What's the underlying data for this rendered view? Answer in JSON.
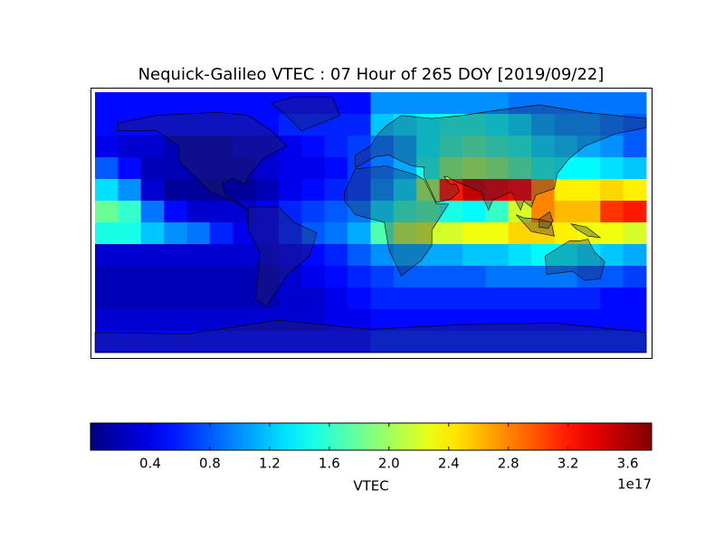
{
  "chart_data": {
    "type": "heatmap",
    "title": "Nequick-Galileo VTEC : 07 Hour of 265 DOY [2019/09/22]",
    "values": [
      [
        0.5,
        0.5,
        0.5,
        0.5,
        0.5,
        0.5,
        0.5,
        0.5,
        0.5,
        0.5,
        0.5,
        0.5,
        1.0,
        1.0,
        1.0,
        1.0,
        1.0,
        1.0,
        0.9,
        0.9,
        0.9,
        0.9,
        0.9,
        0.9
      ],
      [
        0.5,
        0.5,
        0.5,
        0.5,
        0.5,
        0.5,
        0.5,
        0.5,
        0.6,
        0.6,
        0.6,
        0.6,
        1.2,
        1.3,
        1.4,
        1.5,
        1.5,
        1.4,
        1.3,
        1.1,
        1.0,
        1.0,
        0.9,
        0.8
      ],
      [
        0.4,
        0.3,
        0.3,
        0.2,
        0.2,
        0.2,
        0.3,
        0.3,
        0.4,
        0.5,
        0.6,
        0.7,
        0.9,
        1.1,
        1.4,
        1.6,
        1.7,
        1.6,
        1.5,
        1.3,
        1.2,
        1.1,
        1.0,
        0.8
      ],
      [
        0.8,
        0.5,
        0.2,
        0.2,
        0.2,
        0.2,
        0.2,
        0.3,
        0.4,
        0.4,
        0.5,
        0.7,
        0.9,
        1.1,
        1.5,
        1.9,
        2.0,
        1.9,
        1.7,
        1.5,
        1.4,
        1.4,
        1.3,
        1.2
      ],
      [
        1.3,
        1.0,
        0.3,
        0.1,
        0.1,
        0.1,
        0.1,
        0.2,
        0.4,
        0.5,
        0.6,
        0.7,
        1.0,
        1.3,
        2.0,
        3.2,
        3.5,
        3.4,
        3.3,
        2.8,
        2.4,
        2.4,
        2.5,
        2.4
      ],
      [
        1.8,
        1.6,
        0.9,
        0.5,
        0.3,
        0.3,
        0.3,
        0.4,
        0.6,
        0.7,
        0.8,
        0.9,
        1.3,
        1.6,
        1.7,
        1.5,
        1.4,
        1.6,
        2.2,
        2.8,
        2.6,
        2.6,
        3.1,
        3.2
      ],
      [
        1.5,
        1.5,
        1.2,
        1.0,
        0.9,
        0.6,
        0.4,
        0.4,
        0.6,
        0.8,
        0.9,
        1.1,
        1.7,
        2.1,
        2.2,
        2.2,
        2.3,
        2.3,
        2.5,
        2.5,
        2.4,
        2.3,
        2.3,
        2.2
      ],
      [
        0.3,
        0.3,
        0.3,
        0.3,
        0.3,
        0.3,
        0.3,
        0.3,
        0.4,
        0.5,
        0.6,
        0.8,
        1.0,
        1.1,
        1.1,
        1.1,
        1.2,
        1.2,
        1.3,
        1.4,
        1.4,
        1.3,
        1.2,
        1.1
      ],
      [
        0.2,
        0.2,
        0.2,
        0.2,
        0.2,
        0.2,
        0.2,
        0.2,
        0.3,
        0.4,
        0.5,
        0.6,
        0.7,
        0.8,
        0.8,
        0.8,
        0.8,
        0.9,
        0.9,
        0.9,
        0.9,
        0.8,
        0.8,
        0.7
      ],
      [
        0.2,
        0.2,
        0.2,
        0.2,
        0.2,
        0.2,
        0.2,
        0.2,
        0.3,
        0.3,
        0.4,
        0.5,
        0.6,
        0.6,
        0.6,
        0.6,
        0.6,
        0.6,
        0.6,
        0.6,
        0.6,
        0.6,
        0.5,
        0.5
      ],
      [
        0.3,
        0.3,
        0.3,
        0.3,
        0.3,
        0.3,
        0.3,
        0.3,
        0.3,
        0.3,
        0.4,
        0.4,
        0.5,
        0.5,
        0.5,
        0.5,
        0.5,
        0.5,
        0.5,
        0.5,
        0.5,
        0.5,
        0.5,
        0.5
      ],
      [
        0.5,
        0.5,
        0.5,
        0.5,
        0.5,
        0.5,
        0.5,
        0.5,
        0.5,
        0.5,
        0.5,
        0.5,
        0.6,
        0.6,
        0.6,
        0.6,
        0.6,
        0.6,
        0.6,
        0.6,
        0.6,
        0.6,
        0.6,
        0.6
      ]
    ],
    "colormap": "jet",
    "colorbar": {
      "label": "VTEC",
      "offset_label": "1e17",
      "lim": [
        0,
        3.76
      ],
      "ticks": [
        0.4,
        0.8,
        1.2,
        1.6,
        {
          "value": 2,
          "label": "2.0"
        },
        2.4,
        2.8,
        3.2,
        3.6
      ]
    }
  }
}
